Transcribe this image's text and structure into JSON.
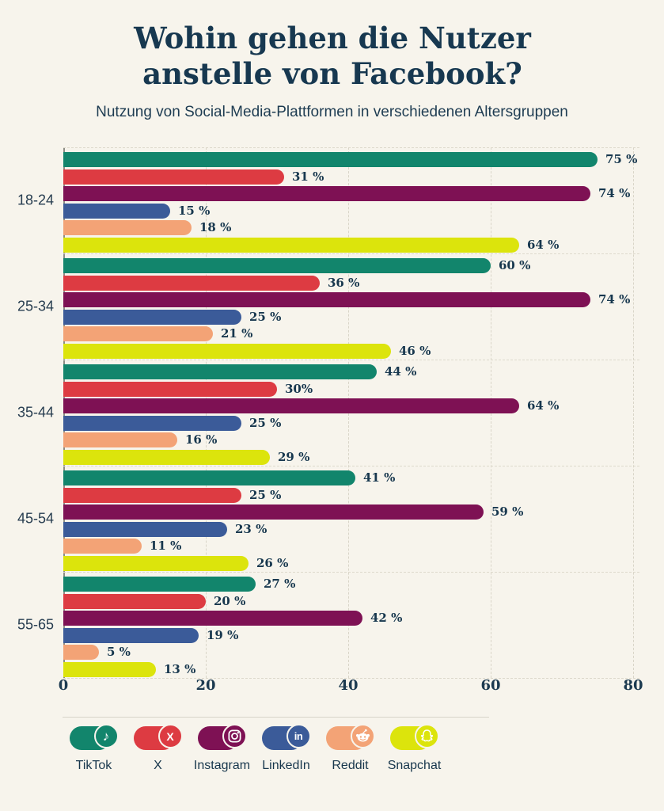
{
  "header": {
    "title": "Wohin gehen die Nutzer anstelle von Facebook?",
    "subtitle": "Nutzung von Social-Media-Plattformen in verschiedenen Altersgruppen"
  },
  "colors": {
    "background": "#f7f4ec",
    "text": "#17374e",
    "axis_line": "#8d8d85",
    "gridline": "#d9d5c8"
  },
  "chart_data": {
    "type": "bar",
    "orientation": "horizontal",
    "title": "Wohin gehen die Nutzer anstelle von Facebook?",
    "subtitle": "Nutzung von Social-Media-Plattformen in verschiedenen Altersgruppen",
    "categories": [
      "18-24",
      "25-34",
      "35-44",
      "45-54",
      "55-65"
    ],
    "series": [
      {
        "name": "TikTok",
        "color": "#12856c",
        "values": [
          75,
          60,
          44,
          41,
          27
        ],
        "labels": [
          "75 %",
          "60 %",
          "44 %",
          "41 %",
          "27 %"
        ]
      },
      {
        "name": "X",
        "color": "#dd3b42",
        "values": [
          31,
          36,
          30,
          25,
          20
        ],
        "labels": [
          "31 %",
          "36 %",
          "30%",
          "25 %",
          "20 %"
        ]
      },
      {
        "name": "Instagram",
        "color": "#7e1154",
        "values": [
          74,
          74,
          64,
          59,
          42
        ],
        "labels": [
          "74 %",
          "74 %",
          "64 %",
          "59 %",
          "42 %"
        ]
      },
      {
        "name": "LinkedIn",
        "color": "#3b5b99",
        "values": [
          15,
          25,
          25,
          23,
          19
        ],
        "labels": [
          "15 %",
          "25 %",
          "25 %",
          "23 %",
          "19 %"
        ]
      },
      {
        "name": "Reddit",
        "color": "#f3a376",
        "values": [
          18,
          21,
          16,
          11,
          5
        ],
        "labels": [
          "18 %",
          "21 %",
          "16 %",
          "11 %",
          "5 %"
        ]
      },
      {
        "name": "Snapchat",
        "color": "#dce40c",
        "values": [
          64,
          46,
          29,
          26,
          13
        ],
        "labels": [
          "64 %",
          "46 %",
          "29 %",
          "26 %",
          "13 %"
        ]
      }
    ],
    "x_axis": {
      "ticks": [
        0,
        20,
        40,
        60,
        80
      ],
      "max": 80
    },
    "grid": "dashed-vertical",
    "legend_position": "bottom"
  },
  "legend": {
    "items": [
      {
        "label": "TikTok",
        "icon": "tiktok-icon",
        "color": "#12856c"
      },
      {
        "label": "X",
        "icon": "x-icon",
        "color": "#dd3b42"
      },
      {
        "label": "Instagram",
        "icon": "instagram-icon",
        "color": "#7e1154"
      },
      {
        "label": "LinkedIn",
        "icon": "linkedin-icon",
        "color": "#3b5b99"
      },
      {
        "label": "Reddit",
        "icon": "reddit-icon",
        "color": "#f3a376"
      },
      {
        "label": "Snapchat",
        "icon": "snapchat-icon",
        "color": "#dce40c"
      }
    ]
  }
}
